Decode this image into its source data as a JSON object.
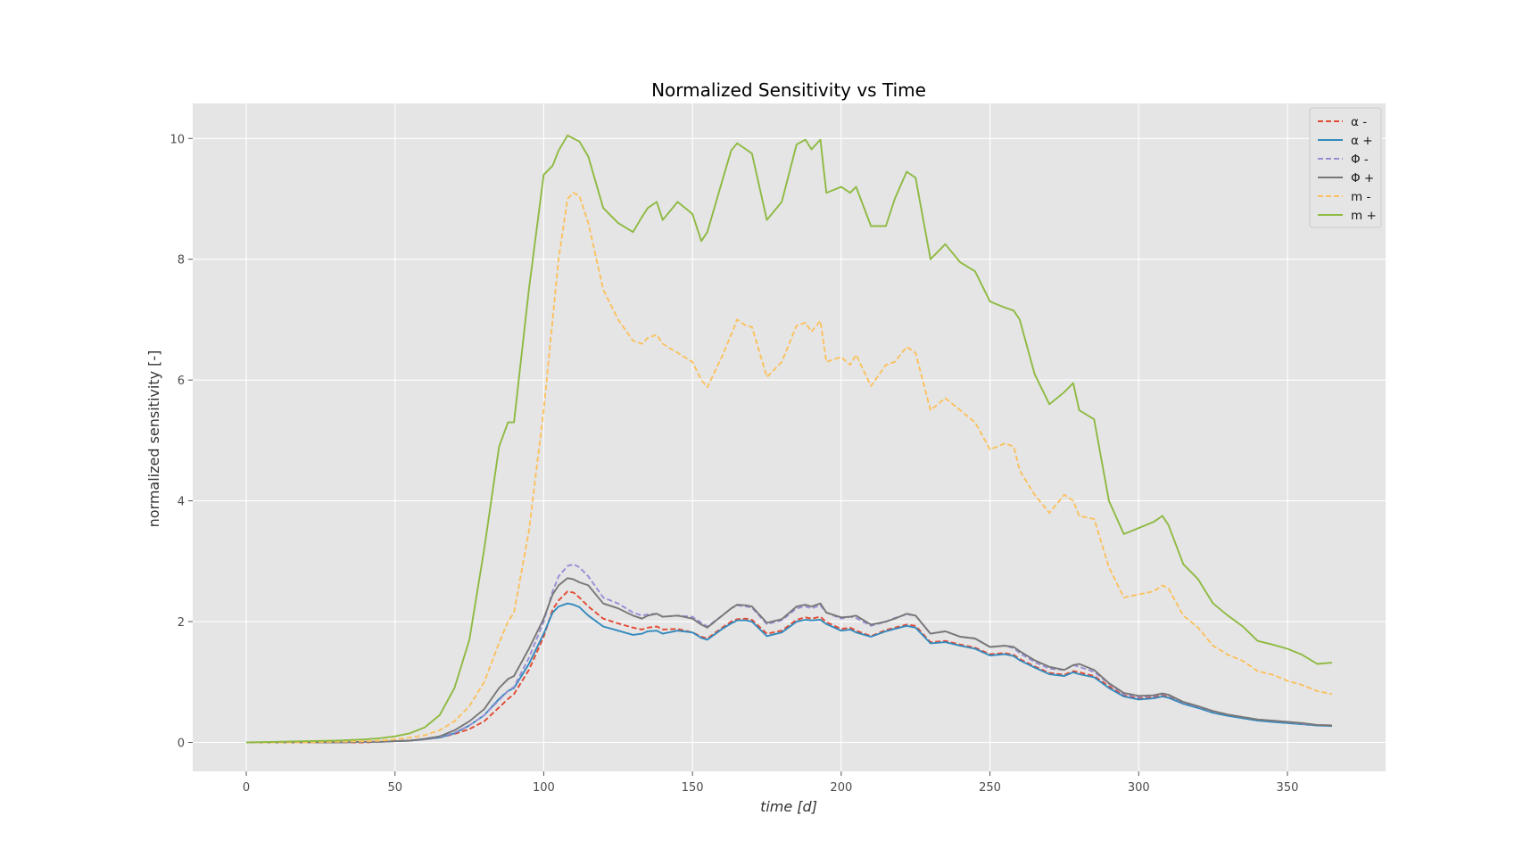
{
  "chart_data": {
    "type": "line",
    "title": "Normalized Sensitivity vs Time",
    "xlabel": "time [d]",
    "ylabel": "normalized sensitivity [-]",
    "xlim": [
      -18,
      383
    ],
    "ylim": [
      -0.48,
      10.58
    ],
    "xticks": [
      0,
      50,
      100,
      150,
      200,
      250,
      300,
      350
    ],
    "yticks": [
      0,
      2,
      4,
      6,
      8,
      10
    ],
    "grid": true,
    "legend_position": "top-right",
    "background": "#e5e5e5",
    "x": [
      0,
      10,
      20,
      30,
      40,
      45,
      50,
      55,
      60,
      65,
      70,
      75,
      80,
      85,
      88,
      90,
      95,
      100,
      103,
      105,
      108,
      110,
      112,
      115,
      120,
      125,
      130,
      133,
      135,
      138,
      140,
      145,
      150,
      153,
      155,
      160,
      163,
      165,
      168,
      170,
      175,
      180,
      185,
      188,
      190,
      193,
      195,
      200,
      203,
      205,
      210,
      215,
      218,
      222,
      225,
      230,
      235,
      240,
      245,
      250,
      255,
      258,
      260,
      265,
      270,
      275,
      278,
      280,
      285,
      290,
      295,
      300,
      305,
      308,
      310,
      315,
      320,
      325,
      330,
      335,
      340,
      345,
      350,
      355,
      360,
      365
    ],
    "series": [
      {
        "name": "α -",
        "color": "#e24a33",
        "dash": true,
        "values": [
          0,
          0,
          0,
          0,
          0,
          0.01,
          0.02,
          0.03,
          0.05,
          0.08,
          0.14,
          0.22,
          0.35,
          0.58,
          0.72,
          0.8,
          1.2,
          1.75,
          2.2,
          2.35,
          2.5,
          2.48,
          2.4,
          2.25,
          2.05,
          1.97,
          1.9,
          1.87,
          1.9,
          1.92,
          1.87,
          1.88,
          1.82,
          1.75,
          1.72,
          1.9,
          2,
          2.04,
          2.05,
          2.03,
          1.8,
          1.85,
          2.03,
          2.07,
          2.05,
          2.08,
          1.99,
          1.88,
          1.9,
          1.85,
          1.76,
          1.86,
          1.9,
          1.95,
          1.93,
          1.66,
          1.68,
          1.62,
          1.57,
          1.46,
          1.48,
          1.45,
          1.38,
          1.26,
          1.15,
          1.12,
          1.18,
          1.16,
          1.1,
          0.93,
          0.78,
          0.73,
          0.75,
          0.78,
          0.76,
          0.65,
          0.58,
          0.5,
          0.45,
          0.41,
          0.37,
          0.35,
          0.33,
          0.31,
          0.29,
          0.28
        ]
      },
      {
        "name": "α +",
        "color": "#348abd",
        "dash": false,
        "values": [
          0,
          0,
          0,
          0,
          0.01,
          0.01,
          0.02,
          0.03,
          0.05,
          0.08,
          0.15,
          0.28,
          0.45,
          0.72,
          0.85,
          0.9,
          1.3,
          1.8,
          2.15,
          2.25,
          2.3,
          2.28,
          2.24,
          2.1,
          1.92,
          1.85,
          1.78,
          1.8,
          1.84,
          1.85,
          1.8,
          1.85,
          1.82,
          1.73,
          1.7,
          1.88,
          1.97,
          2.02,
          2.02,
          2.0,
          1.76,
          1.82,
          2.0,
          2.03,
          2.02,
          2.03,
          1.96,
          1.85,
          1.87,
          1.82,
          1.75,
          1.84,
          1.88,
          1.93,
          1.9,
          1.64,
          1.66,
          1.6,
          1.55,
          1.44,
          1.46,
          1.43,
          1.36,
          1.24,
          1.13,
          1.1,
          1.16,
          1.13,
          1.08,
          0.9,
          0.76,
          0.71,
          0.73,
          0.76,
          0.74,
          0.64,
          0.57,
          0.49,
          0.44,
          0.4,
          0.36,
          0.34,
          0.32,
          0.3,
          0.28,
          0.27
        ]
      },
      {
        "name": "Φ -",
        "color": "#988ed5",
        "dash": true,
        "values": [
          0,
          0,
          0,
          0,
          0.01,
          0.01,
          0.02,
          0.03,
          0.05,
          0.09,
          0.16,
          0.28,
          0.45,
          0.7,
          0.85,
          0.92,
          1.4,
          2.0,
          2.5,
          2.75,
          2.92,
          2.95,
          2.9,
          2.75,
          2.4,
          2.3,
          2.15,
          2.1,
          2.12,
          2.13,
          2.08,
          2.1,
          2.08,
          1.98,
          1.92,
          2.1,
          2.22,
          2.27,
          2.25,
          2.23,
          1.96,
          2.02,
          2.22,
          2.25,
          2.22,
          2.27,
          2.15,
          2.05,
          2.08,
          2.06,
          1.93,
          2.0,
          2.06,
          2.12,
          2.1,
          1.8,
          1.84,
          1.75,
          1.72,
          1.58,
          1.6,
          1.56,
          1.48,
          1.33,
          1.22,
          1.2,
          1.28,
          1.25,
          1.17,
          0.97,
          0.8,
          0.75,
          0.77,
          0.8,
          0.78,
          0.66,
          0.59,
          0.51,
          0.46,
          0.42,
          0.38,
          0.36,
          0.34,
          0.31,
          0.29,
          0.28
        ]
      },
      {
        "name": "Φ +",
        "color": "#777777",
        "dash": false,
        "values": [
          0,
          0,
          0,
          0,
          0.01,
          0.01,
          0.02,
          0.03,
          0.06,
          0.1,
          0.2,
          0.35,
          0.55,
          0.9,
          1.05,
          1.1,
          1.55,
          2.05,
          2.45,
          2.6,
          2.72,
          2.7,
          2.65,
          2.6,
          2.3,
          2.22,
          2.1,
          2.05,
          2.1,
          2.13,
          2.08,
          2.1,
          2.05,
          1.95,
          1.9,
          2.1,
          2.22,
          2.28,
          2.27,
          2.25,
          1.98,
          2.04,
          2.25,
          2.28,
          2.25,
          2.3,
          2.15,
          2.07,
          2.08,
          2.1,
          1.95,
          2.0,
          2.05,
          2.13,
          2.1,
          1.8,
          1.84,
          1.75,
          1.72,
          1.58,
          1.6,
          1.58,
          1.51,
          1.36,
          1.25,
          1.2,
          1.28,
          1.3,
          1.2,
          0.98,
          0.82,
          0.77,
          0.78,
          0.81,
          0.79,
          0.67,
          0.6,
          0.52,
          0.46,
          0.42,
          0.38,
          0.36,
          0.34,
          0.32,
          0.29,
          0.28
        ]
      },
      {
        "name": "m -",
        "color": "#fbc15e",
        "dash": true,
        "values": [
          0,
          0,
          0,
          0.01,
          0.02,
          0.03,
          0.05,
          0.08,
          0.12,
          0.2,
          0.35,
          0.6,
          1.0,
          1.65,
          2.0,
          2.15,
          3.5,
          5.5,
          7.0,
          8.0,
          9.0,
          9.1,
          9.05,
          8.6,
          7.5,
          7.0,
          6.65,
          6.6,
          6.7,
          6.75,
          6.6,
          6.45,
          6.3,
          6.0,
          5.88,
          6.4,
          6.75,
          7.0,
          6.9,
          6.88,
          6.05,
          6.3,
          6.9,
          6.95,
          6.8,
          6.98,
          6.3,
          6.38,
          6.25,
          6.42,
          5.9,
          6.25,
          6.3,
          6.55,
          6.45,
          5.5,
          5.7,
          5.5,
          5.3,
          4.85,
          4.95,
          4.9,
          4.5,
          4.1,
          3.8,
          4.1,
          4.0,
          3.75,
          3.7,
          2.9,
          2.4,
          2.45,
          2.5,
          2.6,
          2.55,
          2.1,
          1.9,
          1.6,
          1.45,
          1.35,
          1.18,
          1.12,
          1.02,
          0.95,
          0.85,
          0.8
        ]
      },
      {
        "name": "m +",
        "color": "#8eba42",
        "dash": false,
        "values": [
          0,
          0.01,
          0.02,
          0.03,
          0.05,
          0.07,
          0.1,
          0.15,
          0.25,
          0.45,
          0.9,
          1.7,
          3.2,
          4.9,
          5.3,
          5.3,
          7.5,
          9.4,
          9.55,
          9.8,
          10.05,
          10.0,
          9.95,
          9.7,
          8.85,
          8.6,
          8.45,
          8.7,
          8.85,
          8.95,
          8.65,
          8.95,
          8.75,
          8.3,
          8.45,
          9.3,
          9.8,
          9.92,
          9.82,
          9.75,
          8.65,
          8.95,
          9.9,
          9.98,
          9.82,
          9.98,
          9.1,
          9.2,
          9.1,
          9.2,
          8.55,
          8.55,
          9.0,
          9.45,
          9.35,
          8.0,
          8.25,
          7.95,
          7.8,
          7.3,
          7.2,
          7.15,
          7.0,
          6.1,
          5.6,
          5.8,
          5.95,
          5.5,
          5.35,
          4.0,
          3.45,
          3.55,
          3.65,
          3.75,
          3.6,
          2.95,
          2.7,
          2.3,
          2.1,
          1.92,
          1.68,
          1.62,
          1.55,
          1.45,
          1.3,
          1.32
        ]
      }
    ]
  }
}
